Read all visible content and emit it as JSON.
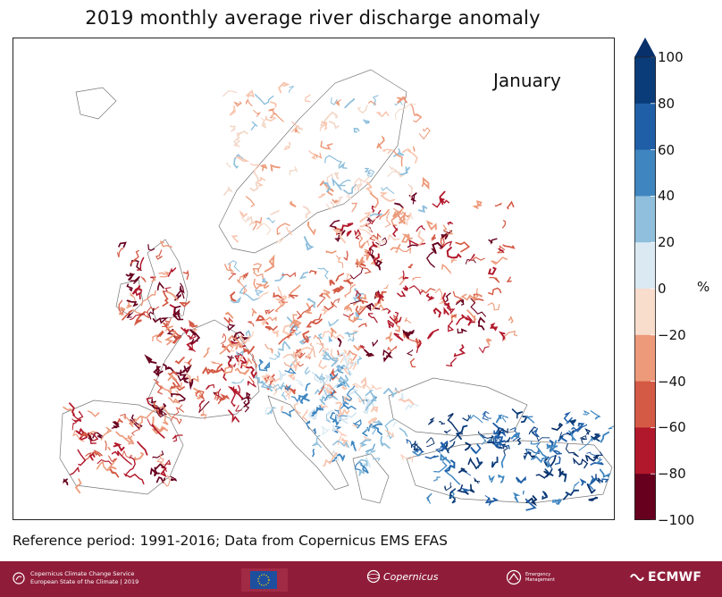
{
  "title": "2019 monthly average river discharge anomaly",
  "month": "January",
  "unit": "%",
  "reference": "Reference period: 1991-2016; Data from Copernicus EMS EFAS",
  "colorbar": {
    "min": -100,
    "max": 100,
    "ticks": [
      "100",
      "80",
      "60",
      "40",
      "20",
      "0",
      "−20",
      "−40",
      "−60",
      "−80",
      "−100"
    ],
    "colors": [
      "#08306b",
      "#1f5fa8",
      "#3f86c0",
      "#8fbfdc",
      "#d6e7f1",
      "#f7f7f7",
      "#f8d2bf",
      "#ec9a7a",
      "#d45a45",
      "#b2182b",
      "#67001f"
    ]
  },
  "footer": {
    "background": "#8f1d3a",
    "c3s_line1": "Copernicus Climate Change Service",
    "c3s_line2": "European State of the Climate | 2019",
    "copernicus": "Copernicus",
    "ems_line1": "Emergency",
    "ems_line2": "Management",
    "ecmwf": "ECMWF"
  },
  "map_regions": [
    {
      "name": "iberia",
      "category": "dry-strong"
    },
    {
      "name": "france",
      "category": "dry-strong"
    },
    {
      "name": "british-isles",
      "category": "dry-strong"
    },
    {
      "name": "central-europe",
      "category": "dry-moderate"
    },
    {
      "name": "eastern-europe",
      "category": "dry-strong"
    },
    {
      "name": "scandinavia",
      "category": "dry-light"
    },
    {
      "name": "alps",
      "category": "wet-light"
    },
    {
      "name": "balkans",
      "category": "wet-light"
    },
    {
      "name": "anatolia",
      "category": "wet-strong"
    }
  ]
}
